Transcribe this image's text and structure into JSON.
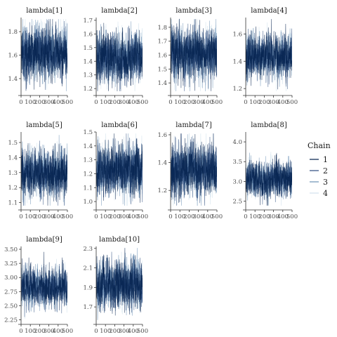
{
  "chart_data": {
    "type": "line",
    "legend": {
      "title": "Chain",
      "position": "right",
      "entries": [
        "1",
        "2",
        "3",
        "4"
      ]
    },
    "series_colors": {
      "1": "#011f4b",
      "2": "#2b4b7e",
      "3": "#6b91b5",
      "4": "#d1e1ec"
    },
    "x_range": [
      0,
      500
    ],
    "x_ticks": [
      "0",
      "100",
      "200",
      "300",
      "400",
      "500"
    ],
    "grid": false,
    "panels": [
      {
        "title": "lambda[1]",
        "ylim": [
          1.28,
          1.92
        ],
        "yticks": [
          "1.4",
          "1.6",
          "1.8"
        ],
        "ytick_values": [
          1.4,
          1.6,
          1.8
        ],
        "center": 1.62,
        "spread": 0.11
      },
      {
        "title": "lambda[2]",
        "ylim": [
          1.17,
          1.72
        ],
        "yticks": [
          "1.2",
          "1.3",
          "1.4",
          "1.5",
          "1.6",
          "1.7"
        ],
        "ytick_values": [
          1.2,
          1.3,
          1.4,
          1.5,
          1.6,
          1.7
        ],
        "center": 1.43,
        "spread": 0.09
      },
      {
        "title": "lambda[3]",
        "ylim": [
          1.33,
          1.87
        ],
        "yticks": [
          "1.4",
          "1.5",
          "1.6",
          "1.7",
          "1.8"
        ],
        "ytick_values": [
          1.4,
          1.5,
          1.6,
          1.7,
          1.8
        ],
        "center": 1.6,
        "spread": 0.09
      },
      {
        "title": "lambda[4]",
        "ylim": [
          1.17,
          1.72
        ],
        "yticks": [
          "1.2",
          "1.4",
          "1.6"
        ],
        "ytick_values": [
          1.2,
          1.4,
          1.6
        ],
        "center": 1.44,
        "spread": 0.08
      },
      {
        "title": "lambda[5]",
        "ylim": [
          1.07,
          1.57
        ],
        "yticks": [
          "1.1",
          "1.2",
          "1.3",
          "1.4",
          "1.5"
        ],
        "ytick_values": [
          1.1,
          1.2,
          1.3,
          1.4,
          1.5
        ],
        "center": 1.3,
        "spread": 0.08
      },
      {
        "title": "lambda[6]",
        "ylim": [
          0.96,
          1.5
        ],
        "yticks": [
          "1.0",
          "1.1",
          "1.2",
          "1.3",
          "1.4",
          "1.5"
        ],
        "ytick_values": [
          1.0,
          1.1,
          1.2,
          1.3,
          1.4,
          1.5
        ],
        "center": 1.23,
        "spread": 0.09
      },
      {
        "title": "lambda[7]",
        "ylim": [
          1.08,
          1.62
        ],
        "yticks": [
          "1.2",
          "1.4",
          "1.6"
        ],
        "ytick_values": [
          1.2,
          1.4,
          1.6
        ],
        "center": 1.35,
        "spread": 0.09
      },
      {
        "title": "lambda[8]",
        "ylim": [
          2.35,
          4.25
        ],
        "yticks": [
          "2.5",
          "3.0",
          "3.5",
          "4.0"
        ],
        "ytick_values": [
          2.5,
          3.0,
          3.5,
          4.0
        ],
        "center": 3.05,
        "spread": 0.22
      },
      {
        "title": "lambda[9]",
        "ylim": [
          2.22,
          3.55
        ],
        "yticks": [
          "2.25",
          "2.50",
          "2.75",
          "3.00",
          "3.25",
          "3.50"
        ],
        "ytick_values": [
          2.25,
          2.5,
          2.75,
          3.0,
          3.25,
          3.5
        ],
        "center": 2.83,
        "spread": 0.16
      },
      {
        "title": "lambda[10]",
        "ylim": [
          1.55,
          2.32
        ],
        "yticks": [
          "1.7",
          "1.9",
          "2.1",
          "2.3"
        ],
        "ytick_values": [
          1.7,
          1.9,
          2.1,
          2.3
        ],
        "center": 1.92,
        "spread": 0.12
      }
    ]
  }
}
